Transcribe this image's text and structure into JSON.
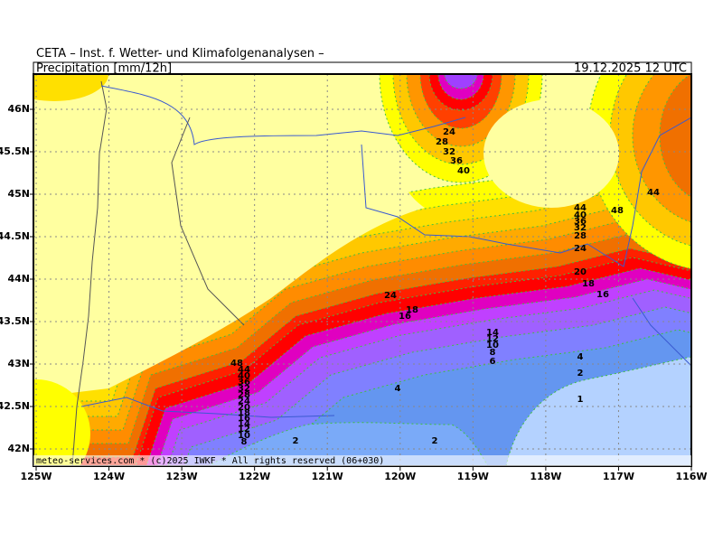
{
  "header": {
    "title": "CETA – Inst. f. Wetter- und Klimafolgenanalysen –",
    "variable": "Precipitation [mm/12h]",
    "valid": "19.12.2025 12 UTC"
  },
  "axes": {
    "lon_labels": [
      "125W",
      "124W",
      "123W",
      "122W",
      "121W",
      "120W",
      "119W",
      "118W",
      "117W",
      "116W"
    ],
    "lat_labels": [
      "46N",
      "45.5N",
      "45N",
      "44.5N",
      "44N",
      "43.5N",
      "43N",
      "42.5N",
      "42N"
    ]
  },
  "contour_labels": [
    "24",
    "28",
    "32",
    "36",
    "40",
    "44",
    "40",
    "36",
    "32",
    "28",
    "24",
    "48",
    "44",
    "20",
    "18",
    "16",
    "24",
    "18",
    "16",
    "14",
    "12",
    "10",
    "8",
    "6",
    "4",
    "2",
    "1",
    "4",
    "2",
    "2",
    "48",
    "44",
    "40",
    "36",
    "32",
    "28",
    "24",
    "20",
    "18",
    "16",
    "14",
    "12",
    "10",
    "8"
  ],
  "footer": "meteo-services.com * (c)2025 IWKF * All rights reserved (06+030)"
}
